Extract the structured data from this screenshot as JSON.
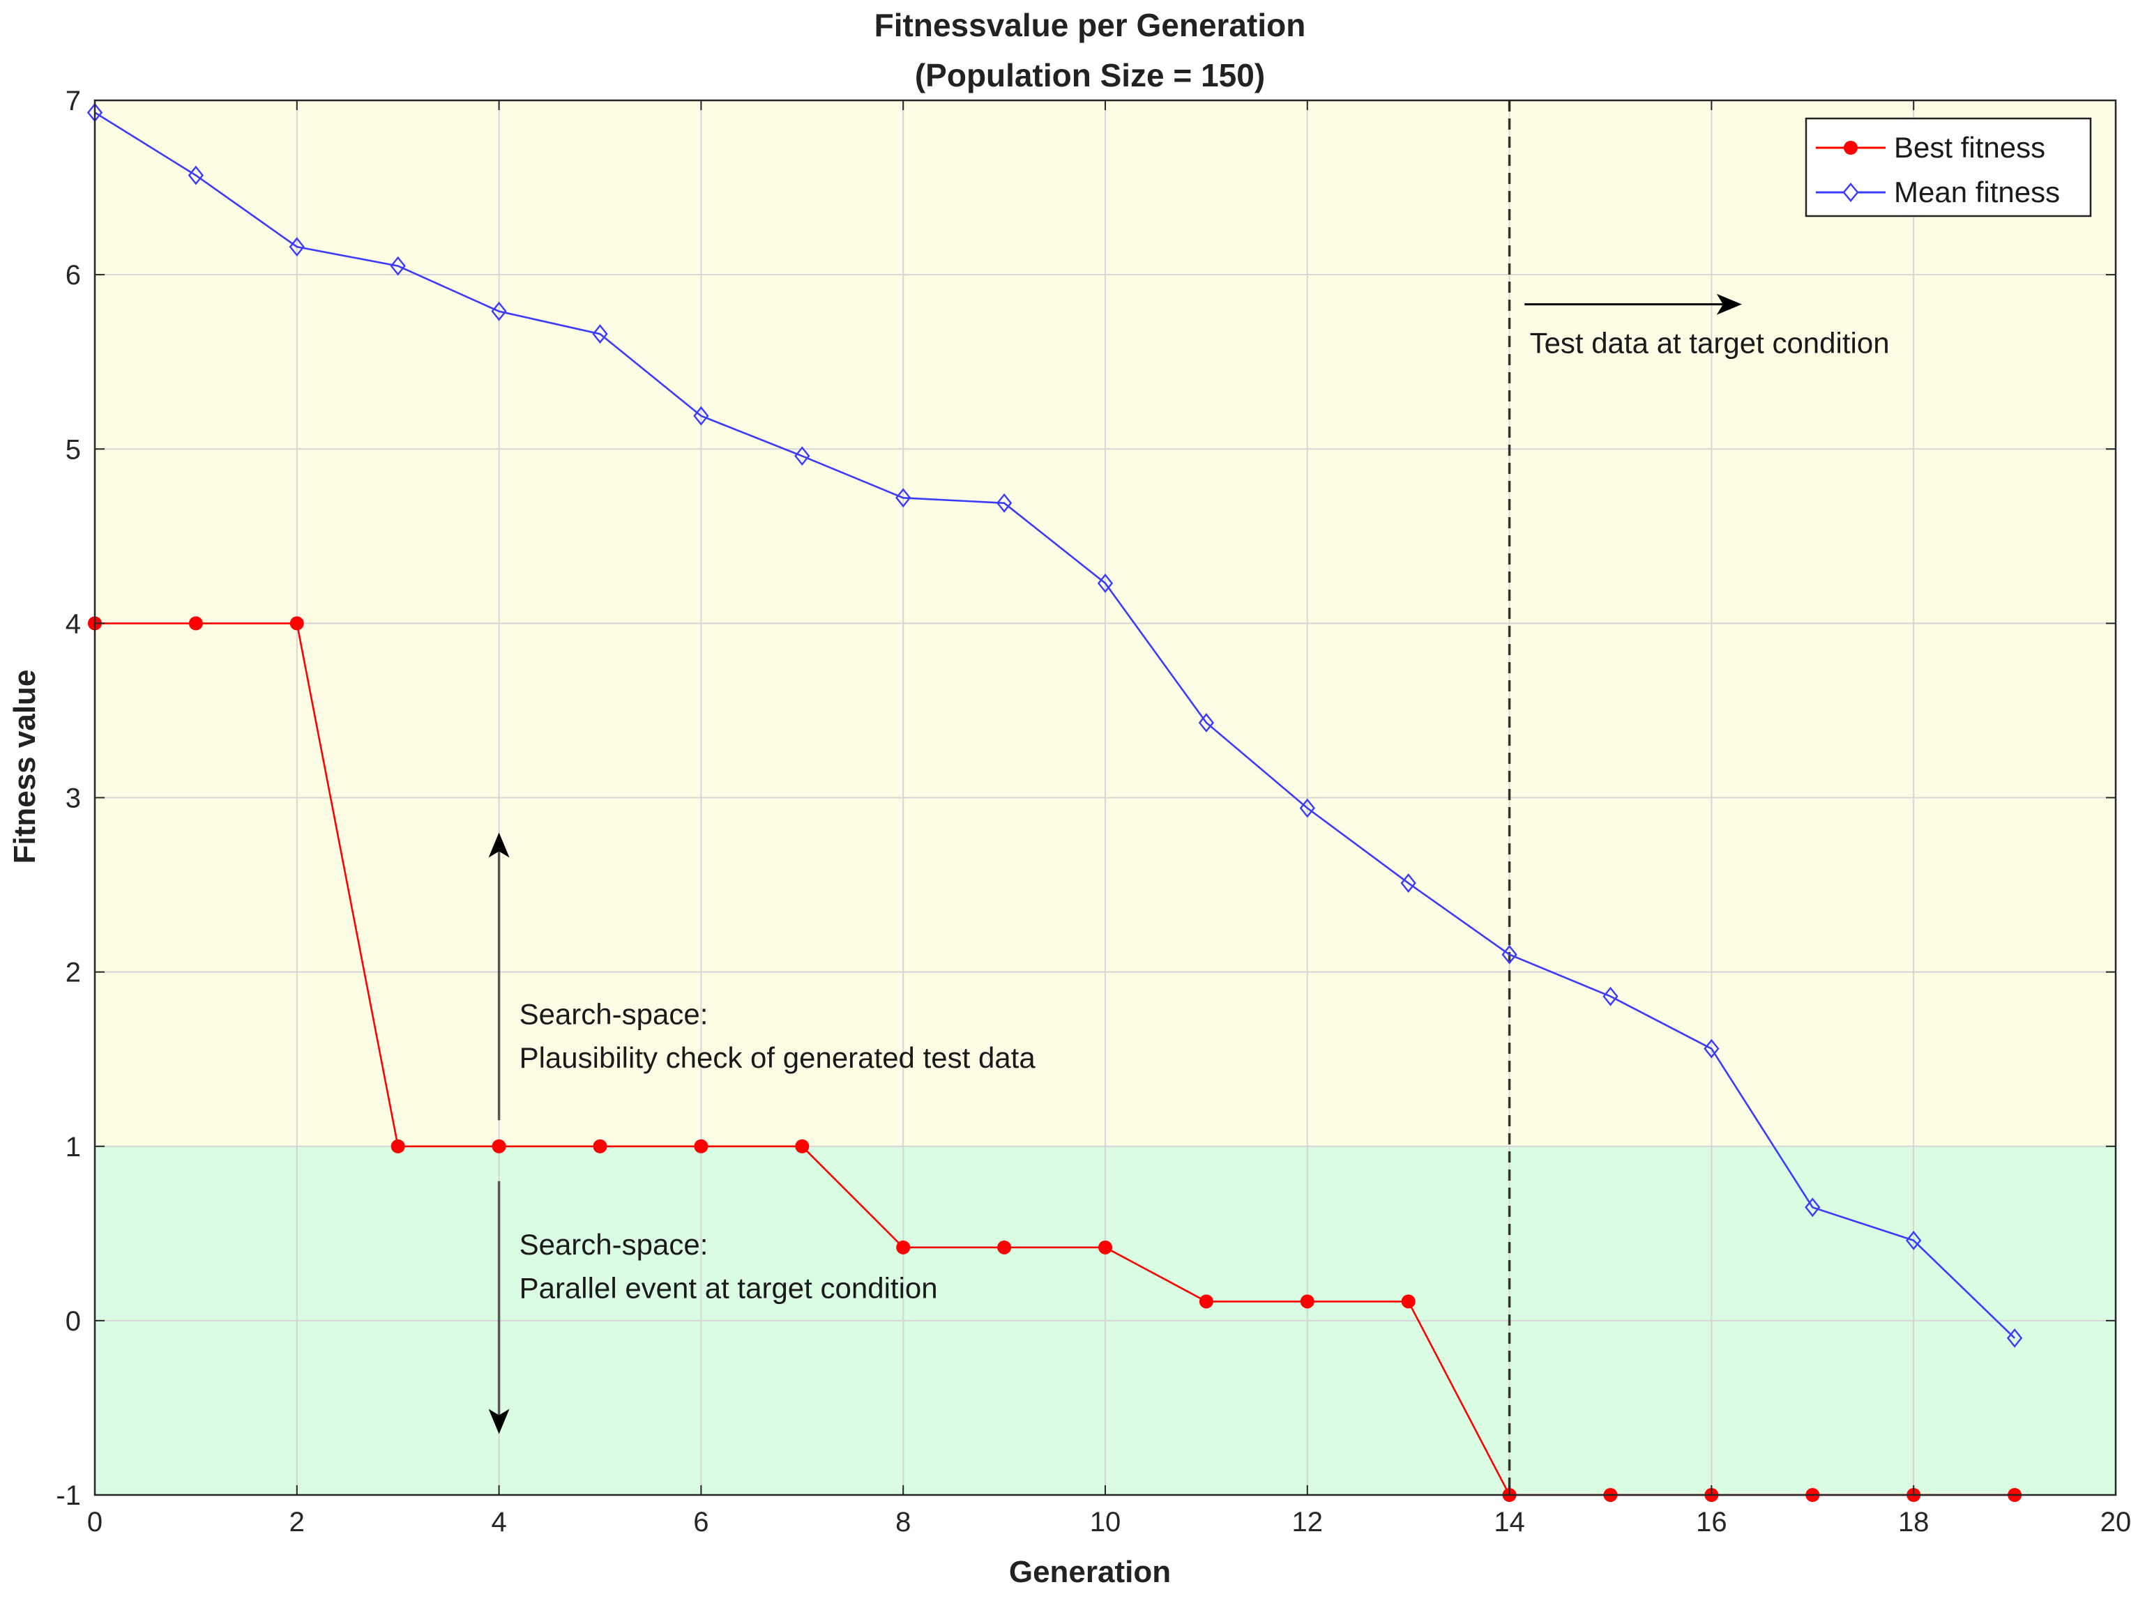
{
  "chart_data": {
    "type": "line",
    "title": "Fitnessvalue per Generation",
    "subtitle": "(Population Size = 150)",
    "xlabel": "Generation",
    "ylabel": "Fitness value",
    "xlim": [
      0,
      20
    ],
    "ylim": [
      -1,
      7
    ],
    "xticks": [
      0,
      2,
      4,
      6,
      8,
      10,
      12,
      14,
      16,
      18,
      20
    ],
    "yticks": [
      -1,
      0,
      1,
      2,
      3,
      4,
      5,
      6,
      7
    ],
    "grid": true,
    "legend_position": "top-right",
    "regions": [
      {
        "y_from": 1,
        "y_to": 7,
        "color": "#fdfde6"
      },
      {
        "y_from": -1,
        "y_to": 1,
        "color": "#d9fce3"
      }
    ],
    "vertical_line": {
      "x": 14,
      "style": "dashed",
      "color": "#333333"
    },
    "series": [
      {
        "name": "Best fitness",
        "color": "#ff0000",
        "marker": "filled-circle",
        "x": [
          0,
          1,
          2,
          3,
          4,
          5,
          6,
          7,
          8,
          9,
          10,
          11,
          12,
          13,
          14,
          15,
          16,
          17,
          18,
          19
        ],
        "y": [
          4,
          4,
          4,
          1,
          1,
          1,
          1,
          1,
          0.42,
          0.42,
          0.42,
          0.11,
          0.11,
          0.11,
          -1,
          -1,
          -1,
          -1,
          -1,
          -1
        ]
      },
      {
        "name": "Mean fitness",
        "color": "#3b3bff",
        "marker": "open-diamond",
        "x": [
          0,
          1,
          2,
          3,
          4,
          5,
          6,
          7,
          8,
          9,
          10,
          11,
          12,
          13,
          14,
          15,
          16,
          17,
          18,
          19
        ],
        "y": [
          6.93,
          6.57,
          6.16,
          6.05,
          5.79,
          5.66,
          5.19,
          4.96,
          4.72,
          4.69,
          4.23,
          3.43,
          2.94,
          2.51,
          2.1,
          1.86,
          1.56,
          0.65,
          0.46,
          -0.1
        ]
      }
    ],
    "annotations": [
      {
        "text": "Test data at target condition",
        "x": 14.2,
        "y": 5.55,
        "arrow": "right"
      },
      {
        "text": "Search-space:",
        "x": 4.2,
        "y": 1.7
      },
      {
        "text": "Plausibility check of generated test data",
        "x": 4.2,
        "y": 1.45
      },
      {
        "text": "Search-space:",
        "x": 4.2,
        "y": 0.38
      },
      {
        "text": "Parallel event at target condition",
        "x": 4.2,
        "y": 0.13
      }
    ],
    "arrows": [
      {
        "x": 4,
        "y_from": 1.15,
        "y_to": 2.8,
        "direction": "up"
      },
      {
        "x": 4,
        "y_from": 0.8,
        "y_to": -0.65,
        "direction": "down"
      },
      {
        "x_from": 14.15,
        "x_to": 16.3,
        "y": 5.83,
        "direction": "right"
      }
    ]
  }
}
